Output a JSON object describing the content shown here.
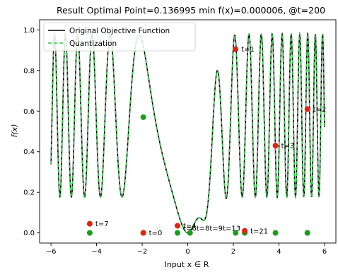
{
  "chart_data": {
    "type": "line",
    "title": "Result Optimal Point=0.136995 min f(x)=0.000006, @t=200",
    "xlabel": "Input x ∈ R",
    "ylabel": "f(x)",
    "xlim": [
      -6.5,
      6.5
    ],
    "ylim": [
      -0.05,
      1.05
    ],
    "xticks": [
      -6,
      -4,
      -2,
      0,
      2,
      4,
      6
    ],
    "xtick_labels": [
      "−6",
      "−4",
      "−2",
      "0",
      "2",
      "4",
      "6"
    ],
    "yticks": [
      0.0,
      0.2,
      0.4,
      0.6,
      0.8,
      1.0
    ],
    "ytick_labels": [
      "0.0",
      "0.2",
      "0.4",
      "0.6",
      "0.8",
      "1.0"
    ],
    "grid": false,
    "legend": "top-left",
    "series": [
      {
        "name": "Original Objective Function",
        "color": "#000000",
        "style": "solid"
      },
      {
        "name": "Quantization",
        "color": "#2ecc40",
        "style": "dashed"
      }
    ],
    "red_points": [
      {
        "x": 2.1,
        "y": 0.905,
        "label": "t=1"
      },
      {
        "x": 5.25,
        "y": 0.61,
        "label": "t=2"
      },
      {
        "x": 3.85,
        "y": 0.43,
        "label": "t=3"
      },
      {
        "x": -0.45,
        "y": 0.035,
        "label": "t=4"
      },
      {
        "x": 2.5,
        "y": 0.01,
        "label": "t=21"
      },
      {
        "x": -1.95,
        "y": 0.0,
        "label": "t=0"
      },
      {
        "x": -4.3,
        "y": 0.045,
        "label": "t=7"
      }
    ],
    "green_points": [
      {
        "x": -1.95,
        "y": 0.57
      },
      {
        "x": -4.3,
        "y": 0.0
      },
      {
        "x": -1.95,
        "y": 0.0
      },
      {
        "x": -0.45,
        "y": 0.0
      },
      {
        "x": 0.1,
        "y": 0.0
      },
      {
        "x": 2.1,
        "y": 0.0
      },
      {
        "x": 2.5,
        "y": 0.0
      },
      {
        "x": 3.85,
        "y": 0.0
      },
      {
        "x": 5.25,
        "y": 0.0
      }
    ],
    "cluster_label": "t=6t=8t=9t=13"
  }
}
